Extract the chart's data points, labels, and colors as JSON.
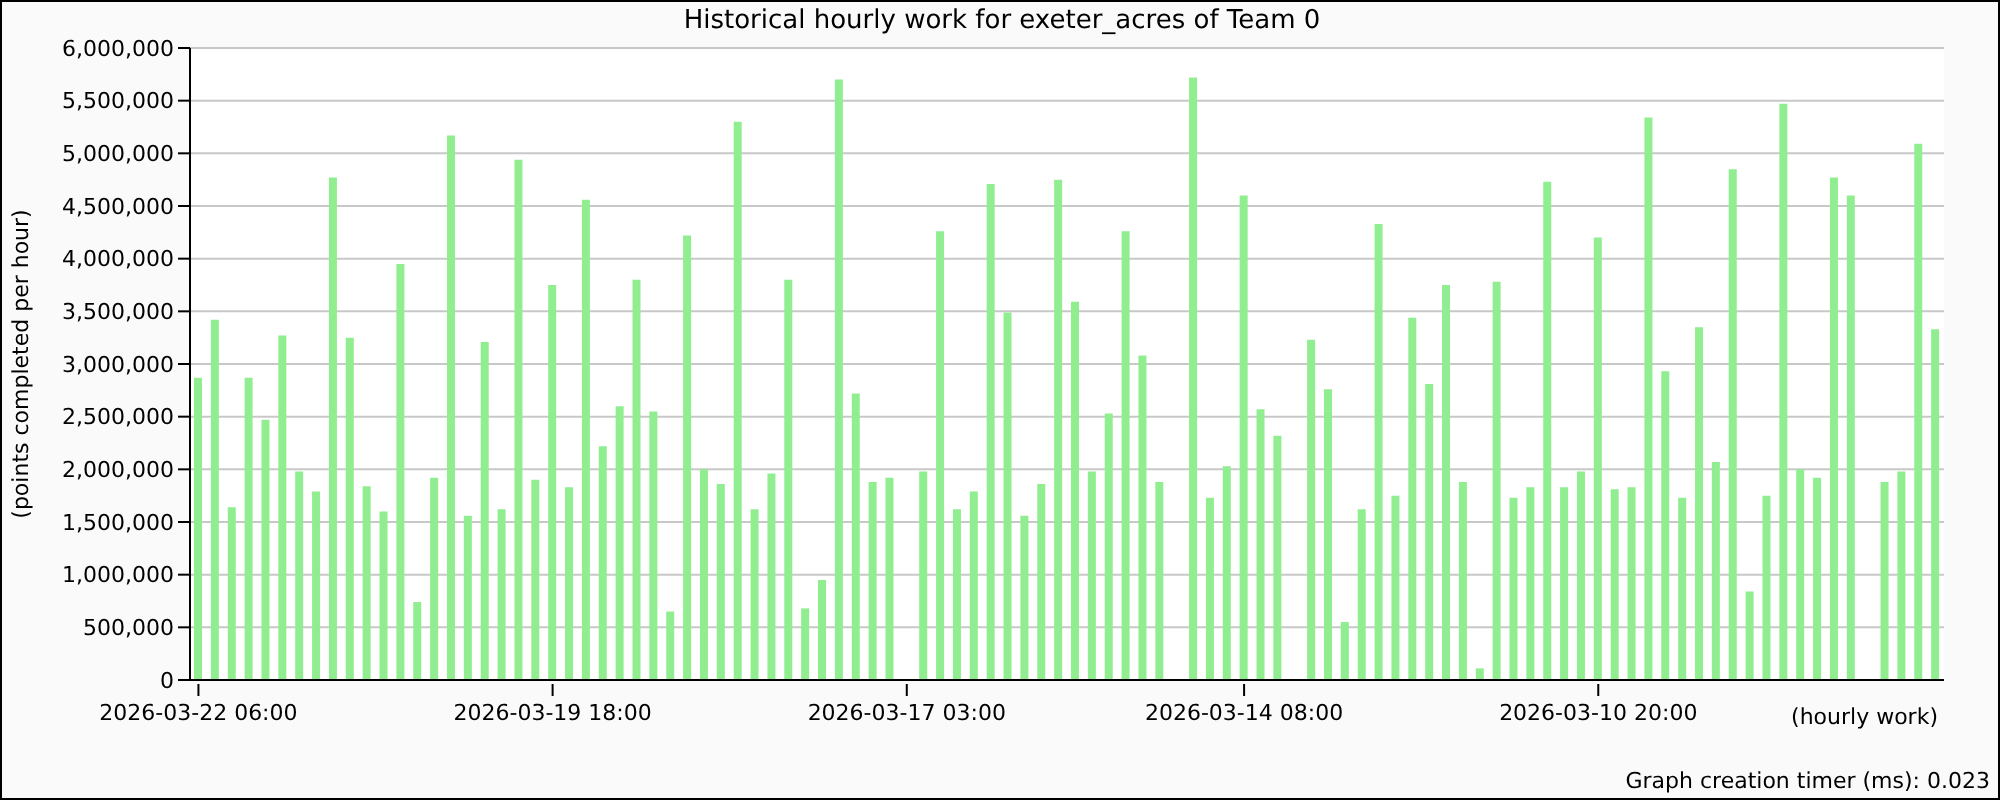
{
  "chart_data": {
    "type": "bar",
    "title": "Historical hourly work for exeter_acres of Team 0",
    "xlabel": "(hourly work)",
    "ylabel": "(points completed per hour)",
    "annotations": [
      "Graph creation timer (ms): 0.023"
    ],
    "categories": [
      "2026-03-22 06:00",
      null,
      null,
      null,
      null,
      null,
      null,
      null,
      null,
      null,
      null,
      null,
      null,
      null,
      null,
      null,
      null,
      null,
      null,
      null,
      null,
      "2026-03-19 18:00",
      null,
      null,
      null,
      null,
      null,
      null,
      null,
      null,
      null,
      null,
      null,
      null,
      null,
      null,
      null,
      null,
      null,
      null,
      null,
      null,
      "2026-03-17 03:00",
      null,
      null,
      null,
      null,
      null,
      null,
      null,
      null,
      null,
      null,
      null,
      null,
      null,
      null,
      null,
      null,
      null,
      null,
      null,
      "2026-03-14 08:00",
      null,
      null,
      null,
      null,
      null,
      null,
      null,
      null,
      null,
      null,
      null,
      null,
      null,
      null,
      null,
      null,
      null,
      null,
      null,
      null,
      "2026-03-10 20:00",
      null,
      null,
      null,
      null,
      null,
      null,
      null,
      null,
      null,
      null,
      null,
      null,
      null,
      null,
      null,
      null,
      null,
      null,
      null,
      null
    ],
    "values": [
      2870000,
      3420000,
      1640000,
      2870000,
      2470000,
      3270000,
      1980000,
      1790000,
      4770000,
      3250000,
      1840000,
      1600000,
      3950000,
      740000,
      1920000,
      5170000,
      1560000,
      3210000,
      1620000,
      4940000,
      1900000,
      3750000,
      1830000,
      4560000,
      2220000,
      2600000,
      3800000,
      2550000,
      650000,
      4220000,
      2000000,
      1860000,
      5300000,
      1620000,
      1960000,
      3800000,
      680000,
      950000,
      5700000,
      2720000,
      1880000,
      1920000,
      null,
      1980000,
      4260000,
      1620000,
      1790000,
      4710000,
      3490000,
      1560000,
      1860000,
      4750000,
      3590000,
      1980000,
      2530000,
      4260000,
      3080000,
      1880000,
      null,
      5720000,
      1730000,
      2030000,
      4600000,
      2570000,
      2320000,
      null,
      3230000,
      2760000,
      550000,
      1620000,
      4330000,
      1750000,
      3440000,
      2810000,
      3750000,
      1880000,
      110000,
      3780000,
      1730000,
      1830000,
      4730000,
      1830000,
      1980000,
      4200000,
      1810000,
      1830000,
      5340000,
      2930000,
      1730000,
      3350000,
      2070000,
      4850000,
      840000,
      1750000,
      5470000,
      2000000,
      1920000,
      4770000,
      4600000,
      null,
      1880000,
      1980000,
      5090000,
      3330000
    ],
    "color": "#90ee90",
    "ylim": [
      0,
      6000000
    ],
    "yticks": [
      0,
      {
        "value": 500000,
        "label": "500,000"
      },
      {
        "value": 1000000,
        "label": "1,000,000"
      },
      {
        "value": 1500000,
        "label": "1,500,000"
      },
      {
        "value": 2000000,
        "label": "2,000,000"
      },
      {
        "value": 2500000,
        "label": "2,500,000"
      },
      {
        "value": 3000000,
        "label": "3,000,000"
      },
      {
        "value": 3500000,
        "label": "3,500,000"
      },
      {
        "value": 4000000,
        "label": "4,000,000"
      },
      {
        "value": 4500000,
        "label": "4,500,000"
      },
      {
        "value": 5000000,
        "label": "5,000,000"
      },
      {
        "value": 5500000,
        "label": "5,500,000"
      },
      {
        "value": 6000000,
        "label": "6,000,000"
      }
    ],
    "grid": "y",
    "legend": false
  }
}
